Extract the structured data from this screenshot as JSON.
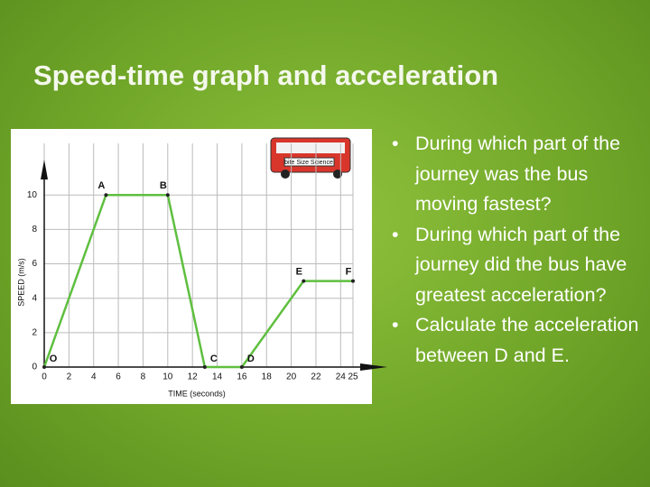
{
  "slide_title": "Speed-time graph and acceleration",
  "bullets": [
    "During which part of the journey was the bus moving fastest?",
    "During which part of the journey did the bus have greatest acceleration?",
    "Calculate the acceleration between D and E."
  ],
  "bus_label": "bite Size Science",
  "chart_data": {
    "type": "line",
    "x": [
      0,
      5,
      10,
      13,
      16,
      21,
      25
    ],
    "y": [
      0,
      10,
      10,
      0,
      0,
      5,
      5
    ],
    "point_labels": [
      "O",
      "A",
      "B",
      "C",
      "D",
      "E",
      "F"
    ],
    "xlabel": "TIME (seconds)",
    "ylabel": "SPEED (m/s)",
    "xlim": [
      0,
      25
    ],
    "ylim": [
      0,
      13
    ],
    "xticks": [
      0,
      2,
      4,
      6,
      8,
      10,
      12,
      14,
      16,
      18,
      20,
      22,
      24,
      25
    ],
    "yticks": [
      0,
      2,
      4,
      6,
      8,
      10
    ],
    "color": "#5fbf3f",
    "grid": true
  }
}
